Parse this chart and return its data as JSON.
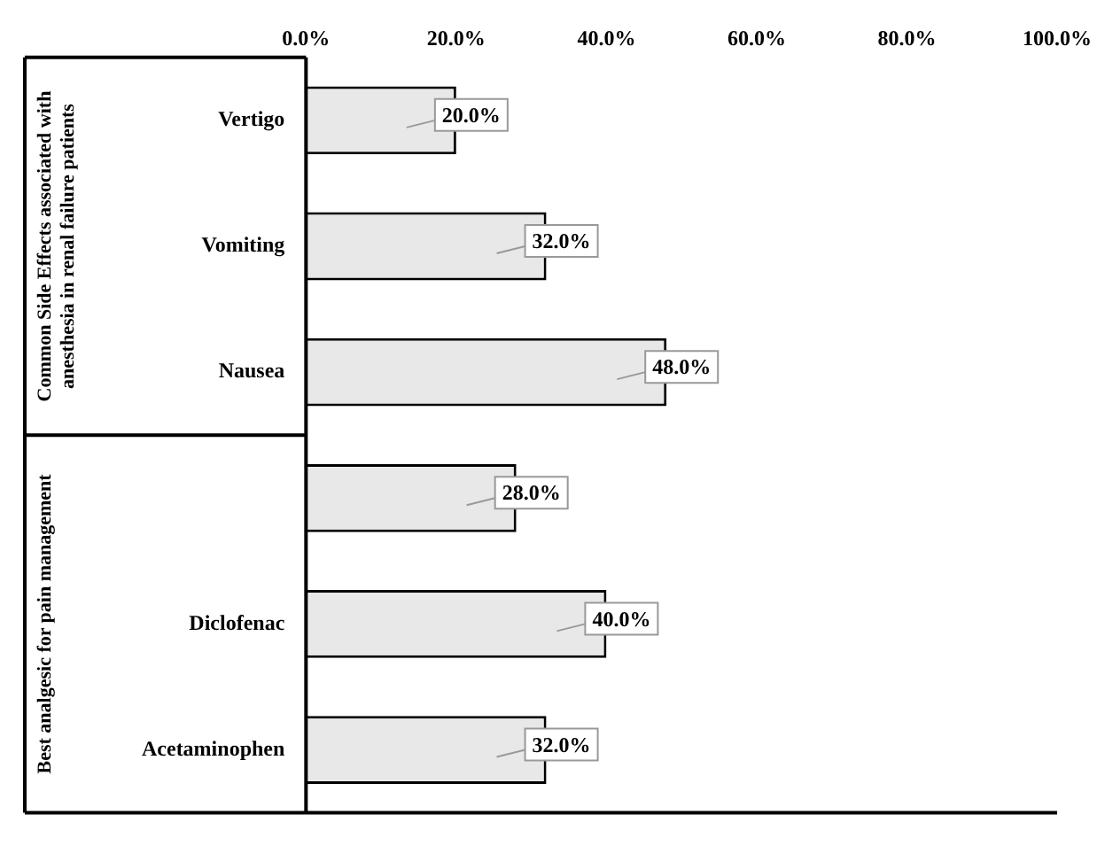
{
  "chart_data": {
    "type": "bar",
    "orientation": "horizontal",
    "categories": [
      "Vertigo",
      "Vomiting",
      "Nausea",
      null,
      "Diclofenac",
      "Acetaminophen"
    ],
    "values": [
      20,
      32,
      48,
      28,
      40,
      32
    ],
    "value_labels": [
      "20.0%",
      "32.0%",
      "48.0%",
      "28.0%",
      "40.0%",
      "32.0%"
    ],
    "color": "#e8e8e8",
    "xlim": [
      0,
      100
    ],
    "xticks": [
      {
        "value": 0,
        "label": "0.0%"
      },
      {
        "value": 20,
        "label": "20.0%"
      },
      {
        "value": 40,
        "label": "40.0%"
      },
      {
        "value": 60,
        "label": "60.0%"
      },
      {
        "value": 80,
        "label": "80.0%"
      },
      {
        "value": 100,
        "label": "100.0%"
      }
    ],
    "grid": false,
    "legend": false,
    "annotations": [
      "Common Side Effects associated with anesthesia in renal failure patients",
      "Best analgesic for pain management"
    ]
  }
}
